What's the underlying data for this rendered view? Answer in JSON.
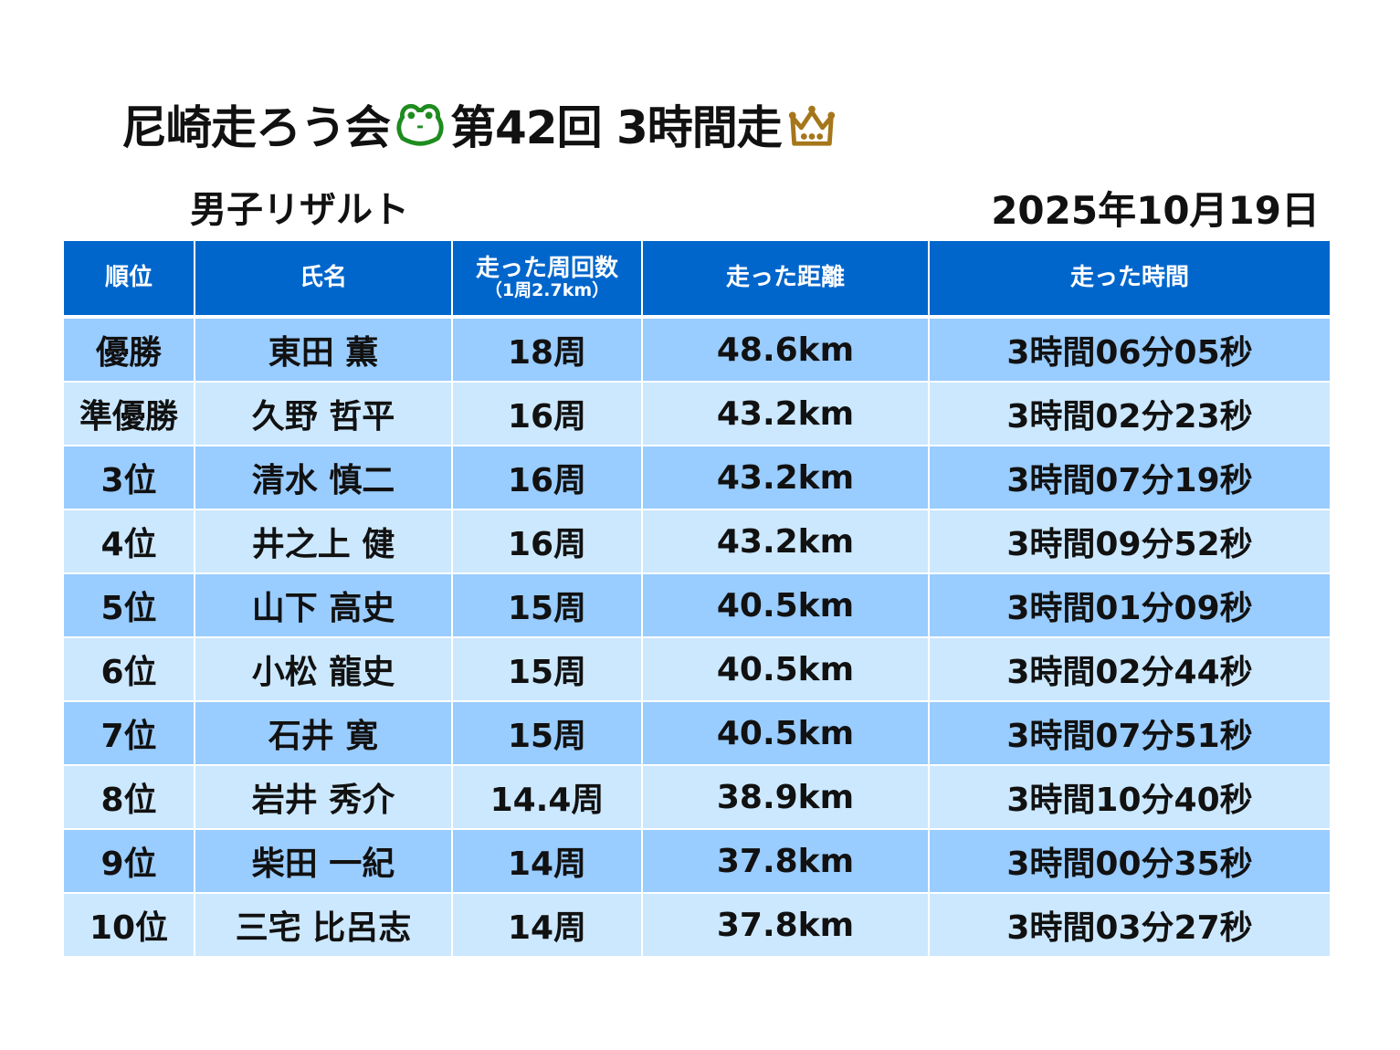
{
  "title": {
    "part1": "尼崎走ろう会",
    "part2": "第42回 3時間走",
    "frog_icon": "frog-icon",
    "crown_icon": "crown-icon",
    "frog_color": "#1E8C1E",
    "crown_color": "#A6761A"
  },
  "subtitle": "男子リザルト",
  "date": "2025年10月19日",
  "colors": {
    "header": "#0066CC",
    "row_dark": "#99CCFF",
    "row_light": "#CCE8FF"
  },
  "table": {
    "headers": {
      "rank": "順位",
      "name": "氏名",
      "laps": "走った周回数",
      "laps_note": "（1周2.7km）",
      "distance": "走った距離",
      "time": "走った時間"
    },
    "rows": [
      {
        "rank": "優勝",
        "name": "東田 薫",
        "laps": "18周",
        "distance": "48.6km",
        "time": "3時間06分05秒"
      },
      {
        "rank": "準優勝",
        "name": "久野 哲平",
        "laps": "16周",
        "distance": "43.2km",
        "time": "3時間02分23秒"
      },
      {
        "rank": "3位",
        "name": "清水 慎二",
        "laps": "16周",
        "distance": "43.2km",
        "time": "3時間07分19秒"
      },
      {
        "rank": "4位",
        "name": "井之上 健",
        "laps": "16周",
        "distance": "43.2km",
        "time": "3時間09分52秒"
      },
      {
        "rank": "5位",
        "name": "山下 高史",
        "laps": "15周",
        "distance": "40.5km",
        "time": "3時間01分09秒"
      },
      {
        "rank": "6位",
        "name": "小松 龍史",
        "laps": "15周",
        "distance": "40.5km",
        "time": "3時間02分44秒"
      },
      {
        "rank": "7位",
        "name": "石井 寛",
        "laps": "15周",
        "distance": "40.5km",
        "time": "3時間07分51秒"
      },
      {
        "rank": "8位",
        "name": "岩井 秀介",
        "laps": "14.4周",
        "distance": "38.9km",
        "time": "3時間10分40秒"
      },
      {
        "rank": "9位",
        "name": "柴田 一紀",
        "laps": "14周",
        "distance": "37.8km",
        "time": "3時間00分35秒"
      },
      {
        "rank": "10位",
        "name": "三宅 比呂志",
        "laps": "14周",
        "distance": "37.8km",
        "time": "3時間03分27秒"
      }
    ]
  }
}
